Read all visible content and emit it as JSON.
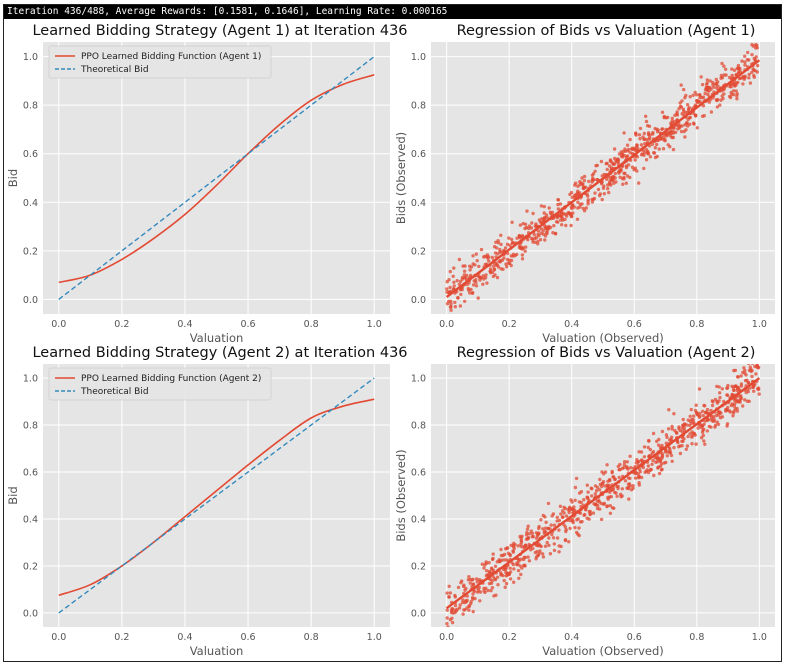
{
  "status": {
    "iteration_text": "Iteration 436/488, Average Rewards: [0.1581, 0.1646], Learning Rate: 0.000165"
  },
  "colors": {
    "learned": "#e24a33",
    "theoretical": "#348abd",
    "scatter": "#e24a33",
    "panel_bg": "#e5e5e5",
    "grid": "#ffffff"
  },
  "chart_data": [
    {
      "type": "line",
      "title": "Learned Bidding Strategy (Agent 1) at Iteration 436",
      "xlabel": "Valuation",
      "ylabel": "Bid",
      "xlim": [
        -0.05,
        1.05
      ],
      "ylim": [
        -0.06,
        1.06
      ],
      "xticks": [
        0.0,
        0.2,
        0.4,
        0.6,
        0.8,
        1.0
      ],
      "yticks": [
        0.0,
        0.2,
        0.4,
        0.6,
        0.8,
        1.0
      ],
      "tick_labels_x": [
        "0.0",
        "0.2",
        "0.4",
        "0.6",
        "0.8",
        "1.0"
      ],
      "tick_labels_y": [
        "0.0",
        "0.2",
        "0.4",
        "0.6",
        "0.8",
        "1.0"
      ],
      "legend_position": "top-left",
      "grid": true,
      "series": [
        {
          "name": "PPO Learned Bidding Function (Agent 1)",
          "style": "solid",
          "x": [
            0.0,
            0.1,
            0.2,
            0.3,
            0.4,
            0.5,
            0.6,
            0.7,
            0.8,
            0.9,
            1.0
          ],
          "y": [
            0.07,
            0.1,
            0.165,
            0.25,
            0.35,
            0.47,
            0.6,
            0.72,
            0.82,
            0.885,
            0.925
          ]
        },
        {
          "name": "Theoretical Bid",
          "style": "dashed",
          "x": [
            0.0,
            1.0
          ],
          "y": [
            0.0,
            1.0
          ]
        }
      ]
    },
    {
      "type": "scatter",
      "title": "Regression of Bids vs Valuation (Agent 1)",
      "xlabel": "Valuation (Observed)",
      "ylabel": "Bids (Observed)",
      "xlim": [
        -0.05,
        1.05
      ],
      "ylim": [
        -0.06,
        1.06
      ],
      "xticks": [
        0.0,
        0.2,
        0.4,
        0.6,
        0.8,
        1.0
      ],
      "yticks": [
        0.0,
        0.2,
        0.4,
        0.6,
        0.8,
        1.0
      ],
      "tick_labels_x": [
        "0.0",
        "0.2",
        "0.4",
        "0.6",
        "0.8",
        "1.0"
      ],
      "tick_labels_y": [
        "0.0",
        "0.2",
        "0.4",
        "0.6",
        "0.8",
        "1.0"
      ],
      "grid": true,
      "regression_line": {
        "x": [
          0.0,
          1.0
        ],
        "y": [
          0.01,
          0.985
        ]
      },
      "point_cloud": {
        "count": 900,
        "noise_sd": 0.04,
        "seed": 7
      }
    },
    {
      "type": "line",
      "title": "Learned Bidding Strategy (Agent 2) at Iteration 436",
      "xlabel": "Valuation",
      "ylabel": "Bid",
      "xlim": [
        -0.05,
        1.05
      ],
      "ylim": [
        -0.06,
        1.06
      ],
      "xticks": [
        0.0,
        0.2,
        0.4,
        0.6,
        0.8,
        1.0
      ],
      "yticks": [
        0.0,
        0.2,
        0.4,
        0.6,
        0.8,
        1.0
      ],
      "tick_labels_x": [
        "0.0",
        "0.2",
        "0.4",
        "0.6",
        "0.8",
        "1.0"
      ],
      "tick_labels_y": [
        "0.0",
        "0.2",
        "0.4",
        "0.6",
        "0.8",
        "1.0"
      ],
      "legend_position": "top-left",
      "grid": true,
      "series": [
        {
          "name": "PPO Learned Bidding Function (Agent 2)",
          "style": "solid",
          "x": [
            0.0,
            0.1,
            0.2,
            0.3,
            0.4,
            0.5,
            0.6,
            0.7,
            0.8,
            0.9,
            1.0
          ],
          "y": [
            0.075,
            0.12,
            0.2,
            0.3,
            0.41,
            0.52,
            0.63,
            0.735,
            0.83,
            0.88,
            0.91
          ]
        },
        {
          "name": "Theoretical Bid",
          "style": "dashed",
          "x": [
            0.0,
            1.0
          ],
          "y": [
            0.0,
            1.0
          ]
        }
      ]
    },
    {
      "type": "scatter",
      "title": "Regression of Bids vs Valuation (Agent 2)",
      "xlabel": "Valuation (Observed)",
      "ylabel": "Bids (Observed)",
      "xlim": [
        -0.05,
        1.05
      ],
      "ylim": [
        -0.06,
        1.06
      ],
      "xticks": [
        0.0,
        0.2,
        0.4,
        0.6,
        0.8,
        1.0
      ],
      "yticks": [
        0.0,
        0.2,
        0.4,
        0.6,
        0.8,
        1.0
      ],
      "tick_labels_x": [
        "0.0",
        "0.2",
        "0.4",
        "0.6",
        "0.8",
        "1.0"
      ],
      "tick_labels_y": [
        "0.0",
        "0.2",
        "0.4",
        "0.6",
        "0.8",
        "1.0"
      ],
      "grid": true,
      "regression_line": {
        "x": [
          0.0,
          1.0
        ],
        "y": [
          0.02,
          1.0
        ]
      },
      "point_cloud": {
        "count": 900,
        "noise_sd": 0.045,
        "seed": 19
      }
    }
  ]
}
